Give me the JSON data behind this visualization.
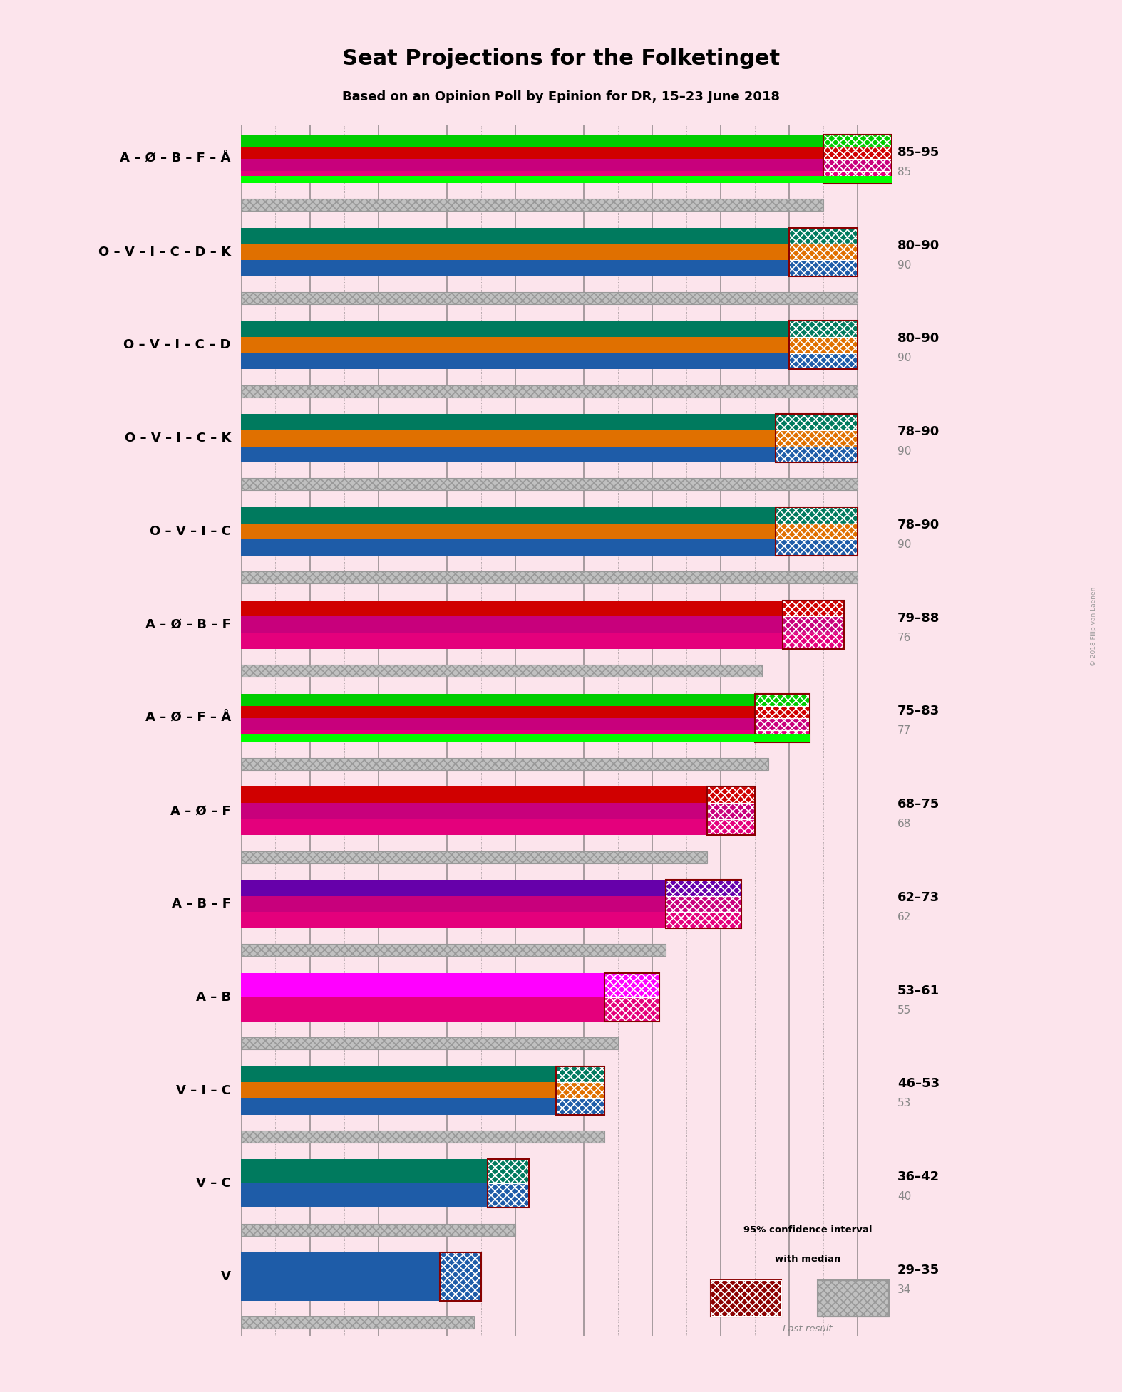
{
  "title": "Seat Projections for the Folketinget",
  "subtitle": "Based on an Opinion Poll by Epinion for DR, 15–23 June 2018",
  "background_color": "#fce4ec",
  "coalitions": [
    {
      "label": "A – Ø – B – F – Å",
      "low": 85,
      "high": 95,
      "last": 85,
      "stripes": [
        "#E4007C",
        "#C8007C",
        "#D00000",
        "#00CC00"
      ],
      "has_green": true
    },
    {
      "label": "O – V – I – C – D – K",
      "low": 80,
      "high": 90,
      "last": 90,
      "stripes": [
        "#1E5CA8",
        "#E07000",
        "#007A5E"
      ],
      "has_green": false
    },
    {
      "label": "O – V – I – C – D",
      "low": 80,
      "high": 90,
      "last": 90,
      "stripes": [
        "#1E5CA8",
        "#E07000",
        "#007A5E"
      ],
      "has_green": false
    },
    {
      "label": "O – V – I – C – K",
      "low": 78,
      "high": 90,
      "last": 90,
      "stripes": [
        "#1E5CA8",
        "#E07000",
        "#007A5E"
      ],
      "has_green": false
    },
    {
      "label": "O – V – I – C",
      "low": 78,
      "high": 90,
      "last": 90,
      "stripes": [
        "#1E5CA8",
        "#E07000",
        "#007A5E"
      ],
      "has_green": false
    },
    {
      "label": "A – Ø – B – F",
      "low": 79,
      "high": 88,
      "last": 76,
      "stripes": [
        "#E4007C",
        "#C8007C",
        "#D00000"
      ],
      "has_green": false
    },
    {
      "label": "A – Ø – F – Å",
      "low": 75,
      "high": 83,
      "last": 77,
      "stripes": [
        "#E4007C",
        "#C8007C",
        "#D00000",
        "#00CC00"
      ],
      "has_green": true
    },
    {
      "label": "A – Ø – F",
      "low": 68,
      "high": 75,
      "last": 68,
      "stripes": [
        "#E4007C",
        "#C8007C",
        "#D00000"
      ],
      "has_green": false
    },
    {
      "label": "A – B – F",
      "low": 62,
      "high": 73,
      "last": 62,
      "stripes": [
        "#E4007C",
        "#C8007C",
        "#6600AA"
      ],
      "has_green": false
    },
    {
      "label": "A – B",
      "low": 53,
      "high": 61,
      "last": 55,
      "stripes": [
        "#E4007C",
        "#FF00FF"
      ],
      "has_green": false
    },
    {
      "label": "V – I – C",
      "low": 46,
      "high": 53,
      "last": 53,
      "stripes": [
        "#1E5CA8",
        "#E07000",
        "#007A5E"
      ],
      "has_green": false
    },
    {
      "label": "V – C",
      "low": 36,
      "high": 42,
      "last": 40,
      "stripes": [
        "#1E5CA8",
        "#007A5E"
      ],
      "has_green": false
    },
    {
      "label": "V",
      "low": 29,
      "high": 35,
      "last": 34,
      "stripes": [
        "#1E5CA8"
      ],
      "has_green": false
    }
  ],
  "xmax": 95,
  "majority_line": 90
}
